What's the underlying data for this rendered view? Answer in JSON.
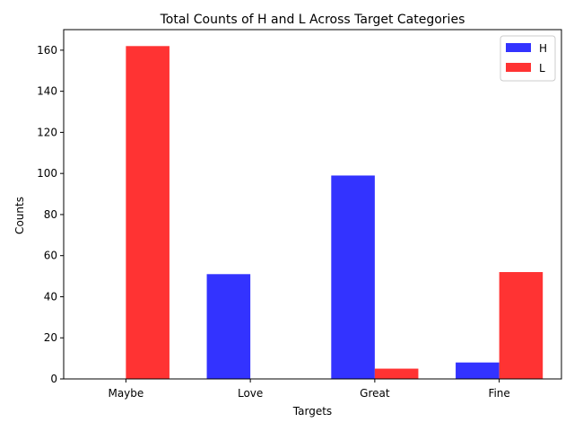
{
  "chart_data": {
    "type": "bar",
    "title": "Total Counts of H and L Across Target Categories",
    "xlabel": "Targets",
    "ylabel": "Counts",
    "categories": [
      "Maybe",
      "Love",
      "Great",
      "Fine"
    ],
    "series": [
      {
        "name": "H",
        "values": [
          0,
          51,
          99,
          8
        ],
        "color": "#3333ff"
      },
      {
        "name": "L",
        "values": [
          162,
          0,
          5,
          52
        ],
        "color": "#ff3333"
      }
    ],
    "ylim": [
      0,
      170
    ],
    "yticks": [
      0,
      20,
      40,
      60,
      80,
      100,
      120,
      140,
      160
    ],
    "grid": false,
    "legend_position": "top-right"
  }
}
